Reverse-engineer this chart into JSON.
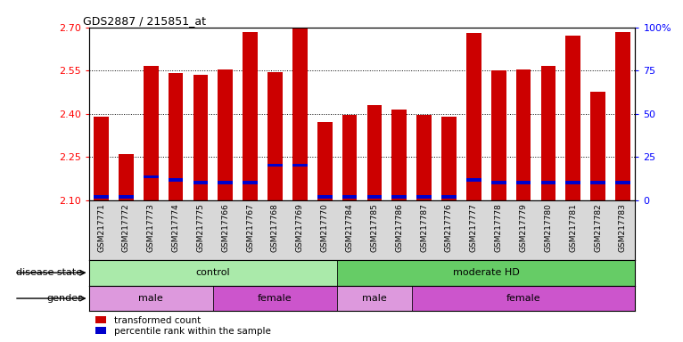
{
  "title": "GDS2887 / 215851_at",
  "samples": [
    "GSM217771",
    "GSM217772",
    "GSM217773",
    "GSM217774",
    "GSM217775",
    "GSM217766",
    "GSM217767",
    "GSM217768",
    "GSM217769",
    "GSM217770",
    "GSM217784",
    "GSM217785",
    "GSM217786",
    "GSM217787",
    "GSM217776",
    "GSM217777",
    "GSM217778",
    "GSM217779",
    "GSM217780",
    "GSM217781",
    "GSM217782",
    "GSM217783"
  ],
  "transformed_count": [
    2.39,
    2.26,
    2.565,
    2.54,
    2.535,
    2.555,
    2.685,
    2.545,
    2.695,
    2.37,
    2.395,
    2.43,
    2.415,
    2.395,
    2.39,
    2.68,
    2.55,
    2.555,
    2.565,
    2.67,
    2.475,
    2.685
  ],
  "percentile_bottom": [
    2.105,
    2.105,
    2.175,
    2.165,
    2.155,
    2.155,
    2.155,
    2.215,
    2.215,
    2.105,
    2.105,
    2.105,
    2.105,
    2.105,
    2.105,
    2.165,
    2.155,
    2.155,
    2.155,
    2.155,
    2.155,
    2.155
  ],
  "percentile_height": [
    0.012,
    0.012,
    0.012,
    0.012,
    0.012,
    0.012,
    0.012,
    0.012,
    0.012,
    0.012,
    0.012,
    0.012,
    0.012,
    0.012,
    0.012,
    0.012,
    0.012,
    0.012,
    0.012,
    0.012,
    0.012,
    0.012
  ],
  "bar_color": "#cc0000",
  "percentile_color": "#0000cc",
  "ymin": 2.1,
  "ymax": 2.7,
  "yticks": [
    2.1,
    2.25,
    2.4,
    2.55,
    2.7
  ],
  "right_yticks": [
    0,
    25,
    50,
    75,
    100
  ],
  "right_yticklabels": [
    "0",
    "25",
    "50",
    "75",
    "100%"
  ],
  "grid_lines": [
    2.25,
    2.4,
    2.55
  ],
  "disease_groups": [
    {
      "label": "control",
      "start": 0,
      "end": 10,
      "color": "#aaeaaa"
    },
    {
      "label": "moderate HD",
      "start": 10,
      "end": 22,
      "color": "#66cc66"
    }
  ],
  "gender_groups": [
    {
      "label": "male",
      "start": 0,
      "end": 5,
      "color": "#dd99dd"
    },
    {
      "label": "female",
      "start": 5,
      "end": 10,
      "color": "#cc55cc"
    },
    {
      "label": "male",
      "start": 10,
      "end": 13,
      "color": "#dd99dd"
    },
    {
      "label": "female",
      "start": 13,
      "end": 22,
      "color": "#cc55cc"
    }
  ],
  "disease_label": "disease state",
  "gender_label": "gender",
  "xtick_bg": "#d8d8d8",
  "legend_items": [
    {
      "label": "transformed count",
      "color": "#cc0000"
    },
    {
      "label": "percentile rank within the sample",
      "color": "#0000cc"
    }
  ]
}
